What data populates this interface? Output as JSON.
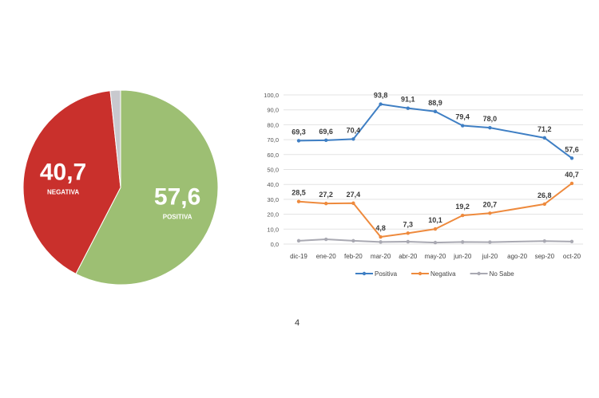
{
  "chart_data": [
    {
      "type": "pie",
      "slices": [
        {
          "label": "POSITIVA",
          "value": 57.6,
          "display": "57,6",
          "color": "#9dbf73"
        },
        {
          "label": "NEGATIVA",
          "value": 40.7,
          "display": "40,7",
          "color": "#c9302c"
        },
        {
          "label": "",
          "value": 1.7,
          "display": "",
          "color": "#c8c9ce"
        }
      ]
    },
    {
      "type": "line",
      "categories": [
        "dic-19",
        "ene-20",
        "feb-20",
        "mar-20",
        "abr-20",
        "may-20",
        "jun-20",
        "jul-20",
        "ago-20",
        "sep-20",
        "oct-20"
      ],
      "ylim": [
        0,
        100
      ],
      "yticks": [
        "0,0",
        "10,0",
        "20,0",
        "30,0",
        "40,0",
        "50,0",
        "60,0",
        "70,0",
        "80,0",
        "90,0",
        "100,0"
      ],
      "grid": true,
      "legend_position": "bottom",
      "series": [
        {
          "name": "Positiva",
          "color": "#3f7fc4",
          "values": [
            69.3,
            69.6,
            70.4,
            93.8,
            91.1,
            88.9,
            79.4,
            78.0,
            null,
            71.2,
            57.6
          ],
          "labels": [
            "69,3",
            "69,6",
            "70,4",
            "93,8",
            "91,1",
            "88,9",
            "79,4",
            "78,0",
            "",
            "71,2",
            "57,6"
          ]
        },
        {
          "name": "Negativa",
          "color": "#ee8a3d",
          "values": [
            28.5,
            27.2,
            27.4,
            4.8,
            7.3,
            10.1,
            19.2,
            20.7,
            null,
            26.8,
            40.7
          ],
          "labels": [
            "28,5",
            "27,2",
            "27,4",
            "4,8",
            "7,3",
            "10,1",
            "19,2",
            "20,7",
            "",
            "26,8",
            "40,7"
          ]
        },
        {
          "name": "No Sabe",
          "color": "#a9a9b2",
          "values": [
            2.2,
            3.2,
            2.2,
            1.4,
            1.6,
            1.0,
            1.4,
            1.3,
            null,
            2.0,
            1.7
          ],
          "labels": []
        }
      ]
    }
  ],
  "page_number": "4"
}
